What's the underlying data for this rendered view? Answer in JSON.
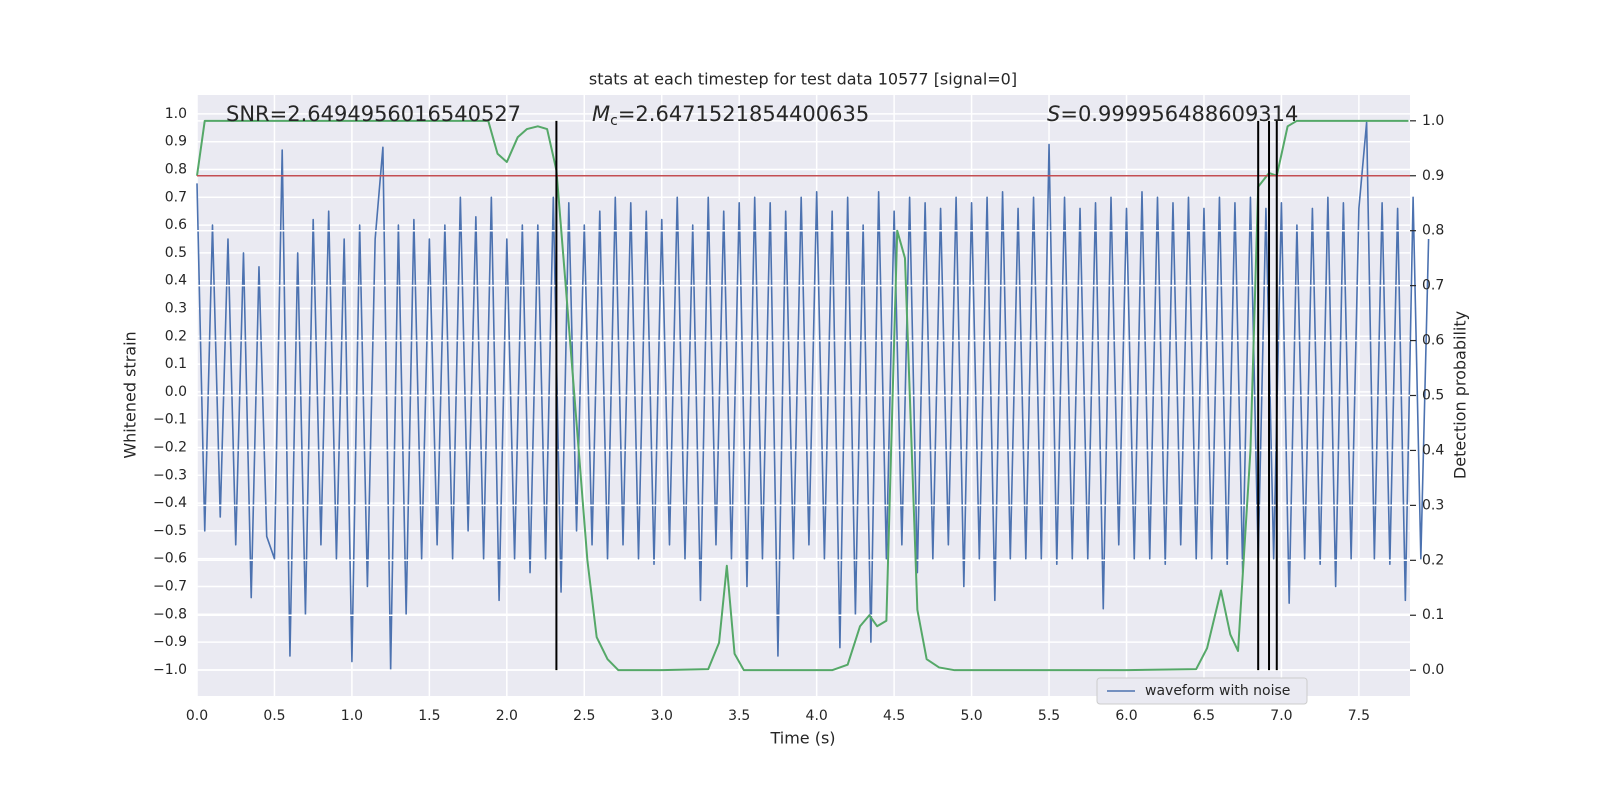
{
  "chart_data": {
    "type": "line",
    "title": "stats at each timestep for test data 10577 [signal=0]",
    "xlabel": "Time (s)",
    "ylabel": "Whitened strain",
    "y2label": "Detection probability",
    "annotations": {
      "snr": "SNR=2.6494956016540527",
      "mc": {
        "symbol": "M",
        "subscript": "c",
        "text": "=2.6471521854400635"
      },
      "s": {
        "symbol": "S",
        "text": "=0.999956488609314"
      }
    },
    "series": [
      {
        "name": "waveform with noise",
        "color": "#4c72b0",
        "x": [
          0,
          0.05,
          0.1,
          0.15,
          0.2,
          0.25,
          0.3,
          0.35,
          0.4,
          0.45,
          0.5,
          0.55,
          0.6,
          0.65,
          0.7,
          0.75,
          0.8,
          0.85,
          0.9,
          0.95,
          1,
          1.05,
          1.1,
          1.15,
          1.2,
          1.25,
          1.3,
          1.35,
          1.4,
          1.45,
          1.5,
          1.55,
          1.6,
          1.65,
          1.7,
          1.75,
          1.8,
          1.85,
          1.9,
          1.95,
          2,
          2.05,
          2.1,
          2.15,
          2.2,
          2.25,
          2.3,
          2.35,
          2.4,
          2.45,
          2.5,
          2.55,
          2.6,
          2.65,
          2.7,
          2.75,
          2.8,
          2.85,
          2.9,
          2.95,
          3,
          3.05,
          3.1,
          3.15,
          3.2,
          3.25,
          3.3,
          3.35,
          3.4,
          3.45,
          3.5,
          3.55,
          3.6,
          3.65,
          3.7,
          3.75,
          3.8,
          3.85,
          3.9,
          3.95,
          4,
          4.05,
          4.1,
          4.15,
          4.2,
          4.25,
          4.3,
          4.35,
          4.4,
          4.45,
          4.5,
          4.55,
          4.6,
          4.65,
          4.7,
          4.75,
          4.8,
          4.85,
          4.9,
          4.95,
          5,
          5.05,
          5.1,
          5.15,
          5.2,
          5.25,
          5.3,
          5.35,
          5.4,
          5.45,
          5.5,
          5.55,
          5.6,
          5.65,
          5.7,
          5.75,
          5.8,
          5.85,
          5.9,
          5.95,
          6,
          6.05,
          6.1,
          6.15,
          6.2,
          6.25,
          6.3,
          6.35,
          6.4,
          6.45,
          6.5,
          6.55,
          6.6,
          6.65,
          6.7,
          6.75,
          6.8,
          6.85,
          6.9,
          6.95,
          7,
          7.05,
          7.1,
          7.15,
          7.2,
          7.25,
          7.3,
          7.35,
          7.4,
          7.45,
          7.5,
          7.55,
          7.6,
          7.65,
          7.7,
          7.75,
          7.8,
          7.85,
          7.9,
          7.95
        ],
        "values": [
          0.75,
          -0.5,
          0.6,
          -0.45,
          0.55,
          -0.55,
          0.5,
          -0.74,
          0.45,
          -0.52,
          -0.6,
          0.87,
          -0.95,
          0.5,
          -0.8,
          0.62,
          -0.55,
          0.65,
          -0.6,
          0.55,
          -0.97,
          0.6,
          -0.7,
          0.55,
          0.88,
          -1.0,
          0.6,
          -0.8,
          0.62,
          -0.6,
          0.55,
          -0.55,
          0.6,
          -0.6,
          0.7,
          -0.5,
          0.63,
          -0.6,
          0.7,
          -0.75,
          0.55,
          -0.6,
          0.6,
          -0.65,
          0.6,
          -0.6,
          0.7,
          -0.72,
          0.68,
          -0.5,
          0.6,
          -0.55,
          0.65,
          -0.6,
          0.7,
          -0.55,
          0.68,
          -0.6,
          0.65,
          -0.62,
          0.62,
          -0.55,
          0.7,
          -0.6,
          0.6,
          -0.75,
          0.7,
          -0.55,
          0.65,
          -0.6,
          0.68,
          -0.7,
          0.7,
          -0.6,
          0.68,
          -0.95,
          0.65,
          -0.6,
          0.7,
          -0.55,
          0.72,
          -0.6,
          0.65,
          -0.92,
          0.7,
          -0.8,
          0.6,
          -0.9,
          0.72,
          -0.6,
          0.65,
          -0.55,
          0.7,
          -0.65,
          0.68,
          -0.6,
          0.66,
          -0.55,
          0.7,
          -0.7,
          0.68,
          -0.6,
          0.7,
          -0.75,
          0.72,
          -0.6,
          0.66,
          -0.6,
          0.7,
          -0.6,
          0.89,
          -0.62,
          0.7,
          -0.6,
          0.66,
          -0.6,
          0.68,
          -0.78,
          0.7,
          -0.55,
          0.66,
          -0.6,
          0.72,
          -0.6,
          0.7,
          -0.62,
          0.68,
          -0.55,
          0.7,
          -0.6,
          0.66,
          -0.6,
          0.7,
          -0.62,
          0.68,
          -0.65,
          0.7,
          -0.6,
          0.66,
          -0.6,
          0.68,
          -0.76,
          0.6,
          -0.6,
          0.66,
          -0.62,
          0.7,
          -0.7,
          0.68,
          -0.6,
          0.66,
          0.97,
          -0.6,
          0.68,
          -0.62,
          0.66,
          -0.75,
          0.7,
          -0.6,
          0.55
        ]
      },
      {
        "color": "#55a868",
        "axis": "y2",
        "x": [
          0.0,
          0.05,
          1.0,
          1.88,
          1.94,
          2.0,
          2.07,
          2.13,
          2.2,
          2.26,
          2.32,
          2.38,
          2.45,
          2.52,
          2.58,
          2.65,
          2.72,
          3.0,
          3.3,
          3.37,
          3.42,
          3.47,
          3.53,
          3.65,
          3.8,
          4.0,
          4.1,
          4.2,
          4.28,
          4.34,
          4.39,
          4.45,
          4.52,
          4.57,
          4.65,
          4.71,
          4.79,
          4.89,
          5.05,
          6.0,
          6.45,
          6.52,
          6.61,
          6.67,
          6.72,
          6.8,
          6.85,
          6.92,
          6.97,
          7.04,
          7.1,
          7.82
        ],
        "values": [
          0.9,
          1.0,
          1.0,
          1.0,
          0.94,
          0.925,
          0.97,
          0.985,
          0.99,
          0.985,
          0.91,
          0.7,
          0.45,
          0.2,
          0.06,
          0.02,
          0.0,
          0.0,
          0.002,
          0.05,
          0.19,
          0.03,
          0.0,
          0.0,
          0.0,
          0.0,
          0.0,
          0.01,
          0.08,
          0.1,
          0.08,
          0.09,
          0.8,
          0.75,
          0.11,
          0.02,
          0.005,
          0.0,
          0.0,
          0.0,
          0.002,
          0.04,
          0.145,
          0.065,
          0.035,
          0.4,
          0.88,
          0.905,
          0.9,
          0.99,
          1.0,
          1.0
        ]
      }
    ],
    "threshold": {
      "value": 0.9,
      "axis": "y2",
      "color": "#c44e52"
    },
    "vlines": {
      "x": [
        2.32,
        6.85,
        6.92,
        6.97
      ],
      "y2range": [
        0,
        1
      ],
      "color": "#000000"
    },
    "xlim": [
      0,
      7.83
    ],
    "ylim": [
      -1.094,
      1.068
    ],
    "y2lim": [
      -0.047,
      1.047
    ],
    "xticks": [
      {
        "value": 0,
        "label": "0.0"
      },
      0.5,
      {
        "value": 1,
        "label": "1.0"
      },
      1.5,
      {
        "value": 2,
        "label": "2.0"
      },
      2.5,
      {
        "value": 3,
        "label": "3.0"
      },
      3.5,
      {
        "value": 4,
        "label": "4.0"
      },
      4.5,
      {
        "value": 5,
        "label": "5.0"
      },
      5.5,
      {
        "value": 6,
        "label": "6.0"
      },
      6.5,
      {
        "value": 7,
        "label": "7.0"
      },
      7.5
    ],
    "yticks": [
      {
        "value": -1,
        "label": "−1.0"
      },
      {
        "value": -0.9,
        "label": "−0.9"
      },
      {
        "value": -0.8,
        "label": "−0.8"
      },
      {
        "value": -0.7,
        "label": "−0.7"
      },
      {
        "value": -0.6,
        "label": "−0.6"
      },
      {
        "value": -0.5,
        "label": "−0.5"
      },
      {
        "value": -0.4,
        "label": "−0.4"
      },
      {
        "value": -0.3,
        "label": "−0.3"
      },
      {
        "value": -0.2,
        "label": "−0.2"
      },
      {
        "value": -0.1,
        "label": "−0.1"
      },
      {
        "value": 0,
        "label": "0.0"
      },
      0.1,
      0.2,
      0.3,
      0.4,
      0.5,
      0.6,
      0.7,
      0.8,
      0.9,
      {
        "value": 1,
        "label": "1.0"
      }
    ],
    "y2ticks": [
      {
        "value": 0,
        "label": "0.0"
      },
      0.1,
      0.2,
      0.3,
      0.4,
      0.5,
      0.6,
      0.7,
      0.8,
      0.9,
      {
        "value": 1,
        "label": "1.0"
      }
    ],
    "grid": true,
    "legend": "lower right"
  }
}
